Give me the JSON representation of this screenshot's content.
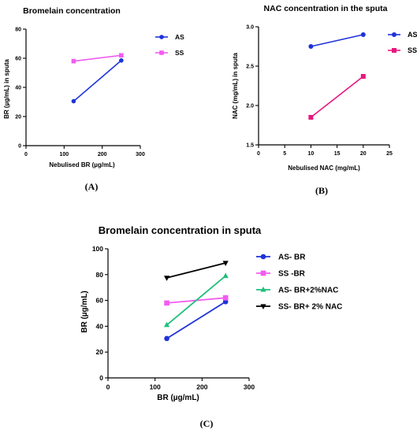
{
  "chart_data": [
    {
      "panel": "A",
      "type": "line",
      "title": "Bromelain concentration",
      "xlabel": "Nebulised BR (µg/mL)",
      "ylabel": "BR (µg/mL) in sputa",
      "xlim": [
        0,
        300
      ],
      "ylim": [
        0,
        80
      ],
      "xticks": [
        0,
        100,
        200,
        300
      ],
      "yticks": [
        0,
        20,
        40,
        60,
        80
      ],
      "legend_position": "top-right",
      "series": [
        {
          "name": "AS",
          "color": "#1f33d9",
          "marker": "circle",
          "x": [
            125,
            250
          ],
          "y": [
            30.5,
            58.5
          ]
        },
        {
          "name": "SS",
          "color": "#f25cf0",
          "marker": "square",
          "x": [
            125,
            250
          ],
          "y": [
            58,
            62
          ]
        }
      ]
    },
    {
      "panel": "B",
      "type": "line",
      "title": "NAC concentration in the sputa",
      "xlabel": "Nebulised NAC (mg/mL)",
      "ylabel": "NAC (mg/mL) in sputa",
      "xlim": [
        0,
        25
      ],
      "ylim": [
        1.5,
        3.0
      ],
      "xticks": [
        0,
        5,
        10,
        15,
        20,
        25
      ],
      "yticks": [
        1.5,
        2.0,
        2.5,
        3.0
      ],
      "ytick_labels": [
        "1.5",
        "2.0",
        "2.5",
        "3.0"
      ],
      "legend_position": "top-right",
      "series": [
        {
          "name": "AS",
          "color": "#1f33d9",
          "marker": "circle",
          "x": [
            10,
            20
          ],
          "y": [
            2.75,
            2.9
          ]
        },
        {
          "name": "SS",
          "color": "#e8177f",
          "marker": "square",
          "x": [
            10,
            20
          ],
          "y": [
            1.85,
            2.37
          ]
        }
      ]
    },
    {
      "panel": "C",
      "type": "line",
      "title": "Bromelain concentration in sputa",
      "xlabel": "BR (µg/mL)",
      "ylabel": "BR (µg/mL)",
      "xlim": [
        0,
        300
      ],
      "ylim": [
        0,
        100
      ],
      "xticks": [
        0,
        100,
        200,
        300
      ],
      "yticks": [
        0,
        20,
        40,
        60,
        80,
        100
      ],
      "legend_position": "right",
      "series": [
        {
          "name": "AS- BR",
          "color": "#1f33d9",
          "marker": "circle",
          "x": [
            125,
            250
          ],
          "y": [
            30.5,
            59
          ]
        },
        {
          "name": "SS -BR",
          "color": "#f25cf0",
          "marker": "square",
          "x": [
            125,
            250
          ],
          "y": [
            58,
            62
          ]
        },
        {
          "name": "AS- BR+2%NAC",
          "color": "#1fbf7a",
          "marker": "triangle",
          "x": [
            125,
            250
          ],
          "y": [
            41,
            79
          ]
        },
        {
          "name": "SS- BR+ 2% NAC",
          "color": "#000000",
          "marker": "triangle-down",
          "x": [
            125,
            250
          ],
          "y": [
            77.5,
            89
          ]
        }
      ]
    }
  ],
  "captions": {
    "a": "(A)",
    "b": "(B)",
    "c": "(C)"
  }
}
